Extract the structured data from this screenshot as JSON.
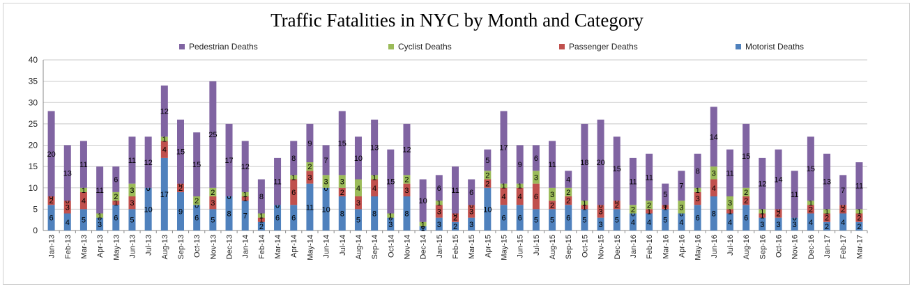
{
  "chart_data": {
    "type": "bar",
    "stacked": true,
    "title": "Traffic Fatalities in NYC by Month and Category",
    "xlabel": "",
    "ylabel": "",
    "ylim": [
      0,
      40
    ],
    "yticks": [
      0,
      5,
      10,
      15,
      20,
      25,
      30,
      35,
      40
    ],
    "grid": true,
    "legend_position": "top",
    "categories": [
      "Jan-13",
      "Feb-13",
      "Mar-13",
      "Apr-13",
      "May-13",
      "Jun-13",
      "Jul-13",
      "Aug-13",
      "Sep-13",
      "Oct-13",
      "Nov-13",
      "Dec-13",
      "Jan-14",
      "Feb-14",
      "Mar-14",
      "Apr-14",
      "May-14",
      "Jun-14",
      "Jul-14",
      "Aug-14",
      "Sep-14",
      "Oct-14",
      "Nov-14",
      "Dec-14",
      "Jan-15",
      "Feb-15",
      "Mar-15",
      "Apr-15",
      "May-15",
      "Jun-15",
      "Jul-15",
      "Aug-15",
      "Sep-15",
      "Oct-15",
      "Nov-15",
      "Dec-15",
      "Jan-16",
      "Feb-16",
      "Mar-16",
      "Apr-16",
      "May-16",
      "Jun-16",
      "Jul-16",
      "Aug-16",
      "Sep-16",
      "Oct-16",
      "Nov-16",
      "Dec-16",
      "Jan-17",
      "Feb-17",
      "Mar-17"
    ],
    "series": [
      {
        "name": "Motorist Deaths",
        "color": "#4f81bd",
        "values": [
          6,
          4,
          5,
          3,
          6,
          5,
          10,
          17,
          9,
          6,
          5,
          8,
          7,
          2,
          6,
          6,
          11,
          10,
          8,
          5,
          8,
          3,
          8,
          1,
          3,
          2,
          3,
          10,
          6,
          6,
          5,
          5,
          6,
          5,
          3,
          5,
          4,
          4,
          5,
          4,
          6,
          8,
          4,
          6,
          3,
          3,
          3,
          4,
          2,
          4,
          2
        ]
      },
      {
        "name": "Passenger Deaths",
        "color": "#c0504d",
        "values": [
          2,
          3,
          4,
          0,
          1,
          3,
          0,
          4,
          2,
          0,
          3,
          0,
          1,
          1,
          0,
          6,
          3,
          0,
          2,
          3,
          4,
          0,
          3,
          0,
          3,
          2,
          3,
          2,
          4,
          4,
          6,
          2,
          2,
          1,
          3,
          2,
          0,
          1,
          1,
          0,
          3,
          4,
          1,
          2,
          1,
          2,
          0,
          2,
          2,
          2,
          2
        ]
      },
      {
        "name": "Cyclist Deaths",
        "color": "#9bbb59",
        "values": [
          0,
          0,
          1,
          1,
          2,
          3,
          0,
          1,
          0,
          2,
          2,
          0,
          1,
          1,
          0,
          1,
          2,
          3,
          3,
          4,
          1,
          1,
          2,
          1,
          1,
          0,
          0,
          2,
          1,
          1,
          3,
          3,
          2,
          1,
          0,
          0,
          2,
          2,
          0,
          3,
          1,
          3,
          3,
          2,
          1,
          0,
          0,
          1,
          1,
          0,
          1
        ]
      },
      {
        "name": "Pedestrian Deaths",
        "color": "#8064a2",
        "values": [
          20,
          13,
          11,
          11,
          6,
          11,
          12,
          12,
          15,
          15,
          25,
          17,
          12,
          8,
          11,
          8,
          9,
          7,
          15,
          10,
          13,
          15,
          12,
          10,
          6,
          11,
          6,
          5,
          17,
          9,
          6,
          11,
          4,
          18,
          20,
          15,
          11,
          11,
          5,
          7,
          8,
          14,
          11,
          15,
          12,
          14,
          11,
          15,
          13,
          7,
          11
        ]
      }
    ],
    "legend_order": [
      "Pedestrian Deaths",
      "Cyclist Deaths",
      "Passenger Deaths",
      "Motorist Deaths"
    ]
  }
}
